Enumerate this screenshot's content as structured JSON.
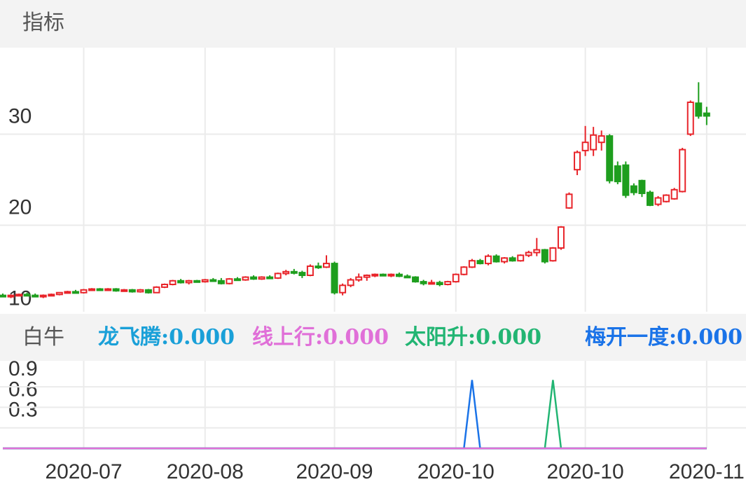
{
  "header": {
    "title": "指标"
  },
  "chart_data": [
    {
      "type": "candlestick",
      "up_color": "#e8242a",
      "down_color": "#1e9e1e",
      "grid": true,
      "ylim": [
        10.5,
        39.5
      ],
      "yticks": [
        10,
        20,
        30
      ],
      "ohlc": [
        [
          12.3,
          12.5,
          12.1,
          12.2
        ],
        [
          12.2,
          12.4,
          12.0,
          12.3
        ],
        [
          12.3,
          12.5,
          12.2,
          12.4
        ],
        [
          12.4,
          12.6,
          12.2,
          12.3
        ],
        [
          12.3,
          12.5,
          12.1,
          12.2
        ],
        [
          12.2,
          12.4,
          12.0,
          12.3
        ],
        [
          12.3,
          12.5,
          12.2,
          12.4
        ],
        [
          12.4,
          12.6,
          12.3,
          12.6
        ],
        [
          12.6,
          12.8,
          12.5,
          12.7
        ],
        [
          12.7,
          12.9,
          12.6,
          12.6
        ],
        [
          12.6,
          13.0,
          12.5,
          12.9
        ],
        [
          12.9,
          13.1,
          12.8,
          13.0
        ],
        [
          13.0,
          13.1,
          12.8,
          12.9
        ],
        [
          12.9,
          13.1,
          12.8,
          13.0
        ],
        [
          13.0,
          13.1,
          12.7,
          12.8
        ],
        [
          12.8,
          13.0,
          12.7,
          12.9
        ],
        [
          12.9,
          13.0,
          12.6,
          12.7
        ],
        [
          12.7,
          13.0,
          12.6,
          12.9
        ],
        [
          12.9,
          13.0,
          12.5,
          12.6
        ],
        [
          12.6,
          13.3,
          12.6,
          13.2
        ],
        [
          13.2,
          13.6,
          13.1,
          13.5
        ],
        [
          13.5,
          14.0,
          13.4,
          13.9
        ],
        [
          13.9,
          14.1,
          13.6,
          13.7
        ],
        [
          13.7,
          14.0,
          13.5,
          13.9
        ],
        [
          13.9,
          14.0,
          13.7,
          13.8
        ],
        [
          13.8,
          14.1,
          13.7,
          14.0
        ],
        [
          14.0,
          14.2,
          13.8,
          13.9
        ],
        [
          13.9,
          14.2,
          13.5,
          13.6
        ],
        [
          13.6,
          14.2,
          13.5,
          14.1
        ],
        [
          14.1,
          14.3,
          13.9,
          14.0
        ],
        [
          14.0,
          14.4,
          13.9,
          14.3
        ],
        [
          14.3,
          14.5,
          14.0,
          14.1
        ],
        [
          14.1,
          14.4,
          14.0,
          14.3
        ],
        [
          14.3,
          14.5,
          14.1,
          14.2
        ],
        [
          14.2,
          14.8,
          14.1,
          14.7
        ],
        [
          14.7,
          15.1,
          14.5,
          14.9
        ],
        [
          14.9,
          15.2,
          14.6,
          14.8
        ],
        [
          14.8,
          15.0,
          14.2,
          14.5
        ],
        [
          14.5,
          15.7,
          14.4,
          15.5
        ],
        [
          15.5,
          15.9,
          15.2,
          15.4
        ],
        [
          15.4,
          16.7,
          15.3,
          15.8
        ],
        [
          15.8,
          16.0,
          12.4,
          12.6
        ],
        [
          12.6,
          13.6,
          12.3,
          13.4
        ],
        [
          13.4,
          14.2,
          13.2,
          14.0
        ],
        [
          14.0,
          14.7,
          13.8,
          14.3
        ],
        [
          14.3,
          14.6,
          13.9,
          14.5
        ],
        [
          14.5,
          14.7,
          14.3,
          14.6
        ],
        [
          14.6,
          14.7,
          14.4,
          14.5
        ],
        [
          14.5,
          14.7,
          14.3,
          14.6
        ],
        [
          14.6,
          14.8,
          14.3,
          14.4
        ],
        [
          14.4,
          14.6,
          14.2,
          14.3
        ],
        [
          14.3,
          14.4,
          13.7,
          13.8
        ],
        [
          13.8,
          14.0,
          13.4,
          13.6
        ],
        [
          13.6,
          14.0,
          13.5,
          13.7
        ],
        [
          13.7,
          13.9,
          13.3,
          13.5
        ],
        [
          13.5,
          13.9,
          13.4,
          13.8
        ],
        [
          13.8,
          14.7,
          13.7,
          14.6
        ],
        [
          14.6,
          15.5,
          14.5,
          15.4
        ],
        [
          15.4,
          16.3,
          15.3,
          16.1
        ],
        [
          16.1,
          16.3,
          15.7,
          15.8
        ],
        [
          15.8,
          16.8,
          15.6,
          16.6
        ],
        [
          16.6,
          16.8,
          15.9,
          16.0
        ],
        [
          16.0,
          16.5,
          15.8,
          16.4
        ],
        [
          16.4,
          16.6,
          16.0,
          16.1
        ],
        [
          16.1,
          16.8,
          16.0,
          16.7
        ],
        [
          16.7,
          17.2,
          16.5,
          17.0
        ],
        [
          17.0,
          18.6,
          16.6,
          17.3
        ],
        [
          17.3,
          17.4,
          15.8,
          16.0
        ],
        [
          16.1,
          17.6,
          16.0,
          17.5
        ],
        [
          17.5,
          19.9,
          17.3,
          19.8
        ],
        [
          21.9,
          23.6,
          21.8,
          23.4
        ],
        [
          26.1,
          28.2,
          25.5,
          28.0
        ],
        [
          28.2,
          30.9,
          27.6,
          29.1
        ],
        [
          28.3,
          30.8,
          27.6,
          29.9
        ],
        [
          29.1,
          30.4,
          28.2,
          29.8
        ],
        [
          29.8,
          30.0,
          24.6,
          24.9
        ],
        [
          26.5,
          27.0,
          24.5,
          24.8
        ],
        [
          26.6,
          27.0,
          23.0,
          23.3
        ],
        [
          24.3,
          24.6,
          23.3,
          23.6
        ],
        [
          24.9,
          25.0,
          23.1,
          23.5
        ],
        [
          23.6,
          23.8,
          22.1,
          22.2
        ],
        [
          22.3,
          23.2,
          22.1,
          23.0
        ],
        [
          22.6,
          23.4,
          22.5,
          23.3
        ],
        [
          22.9,
          24.1,
          22.8,
          23.9
        ],
        [
          23.7,
          28.5,
          23.6,
          28.3
        ],
        [
          30.0,
          33.7,
          29.8,
          33.5
        ],
        [
          33.4,
          35.7,
          31.7,
          32.0
        ],
        [
          32.3,
          33.0,
          31.0,
          32.0
        ]
      ]
    },
    {
      "type": "line",
      "title": "白牛",
      "grid": true,
      "ylim": [
        0,
        1.28
      ],
      "yticks": [
        0.3,
        0.6,
        0.9
      ],
      "categories": [
        null,
        null,
        null,
        null,
        null,
        null,
        null,
        null,
        null,
        null,
        "2020-07",
        null,
        null,
        null,
        null,
        null,
        null,
        null,
        null,
        null,
        null,
        null,
        null,
        null,
        null,
        "2020-08",
        null,
        null,
        null,
        null,
        null,
        null,
        null,
        null,
        null,
        null,
        null,
        null,
        null,
        null,
        null,
        "2020-09",
        null,
        null,
        null,
        null,
        null,
        null,
        null,
        null,
        null,
        null,
        null,
        null,
        null,
        null,
        "2020-10",
        null,
        null,
        null,
        null,
        null,
        null,
        null,
        null,
        null,
        null,
        null,
        null,
        null,
        null,
        null,
        "2020-10",
        null,
        null,
        null,
        null,
        null,
        null,
        null,
        null,
        null,
        null,
        null,
        null,
        null,
        null,
        "2020-11"
      ],
      "series": [
        {
          "name": "龙飞腾:0.000",
          "color": "#1aa0d8",
          "values": [
            0,
            0,
            0,
            0,
            0,
            0,
            0,
            0,
            0,
            0,
            0,
            0,
            0,
            0,
            0,
            0,
            0,
            0,
            0,
            0,
            0,
            0,
            0,
            0,
            0,
            0,
            0,
            0,
            0,
            0,
            0,
            0,
            0,
            0,
            0,
            0,
            0,
            0,
            0,
            0,
            0,
            0,
            0,
            0,
            0,
            0,
            0,
            0,
            0,
            0,
            0,
            0,
            0,
            0,
            0,
            0,
            0,
            0,
            0,
            0,
            0,
            0,
            0,
            0,
            0,
            0,
            0,
            0,
            0,
            0,
            0,
            0,
            0,
            0,
            0,
            0,
            0,
            0,
            0,
            0,
            0,
            0,
            0,
            0,
            0,
            0,
            0,
            0
          ]
        },
        {
          "name": "梅开一度:0.000",
          "color": "#1a73e8",
          "values": [
            0,
            0,
            0,
            0,
            0,
            0,
            0,
            0,
            0,
            0,
            0,
            0,
            0,
            0,
            0,
            0,
            0,
            0,
            0,
            0,
            0,
            0,
            0,
            0,
            0,
            0,
            0,
            0,
            0,
            0,
            0,
            0,
            0,
            0,
            0,
            0,
            0,
            0,
            0,
            0,
            0,
            0,
            0,
            0,
            0,
            0,
            0,
            0,
            0,
            0,
            0,
            0,
            0,
            0,
            0,
            0,
            0,
            0,
            1,
            0,
            0,
            0,
            0,
            0,
            0,
            0,
            0,
            0,
            0,
            0,
            0,
            0,
            0,
            0,
            0,
            0,
            0,
            0,
            0,
            0,
            0,
            0,
            0,
            0,
            0,
            0,
            0,
            0
          ]
        },
        {
          "name": "太阳升:0.000",
          "color": "#22b573",
          "values": [
            0,
            0,
            0,
            0,
            0,
            0,
            0,
            0,
            0,
            0,
            0,
            0,
            0,
            0,
            0,
            0,
            0,
            0,
            0,
            0,
            0,
            0,
            0,
            0,
            0,
            0,
            0,
            0,
            0,
            0,
            0,
            0,
            0,
            0,
            0,
            0,
            0,
            0,
            0,
            0,
            0,
            0,
            0,
            0,
            0,
            0,
            0,
            0,
            0,
            0,
            0,
            0,
            0,
            0,
            0,
            0,
            0,
            0,
            0,
            0,
            0,
            0,
            0,
            0,
            0,
            0,
            0,
            0,
            1,
            0,
            0,
            0,
            0,
            0,
            0,
            0,
            0,
            0,
            0,
            0,
            0,
            0,
            0,
            0,
            0,
            0,
            0,
            0
          ]
        },
        {
          "name": "线上行:0.000",
          "color": "#e070d8",
          "values": [
            0,
            0,
            0,
            0,
            0,
            0,
            0,
            0,
            0,
            0,
            0,
            0,
            0,
            0,
            0,
            0,
            0,
            0,
            0,
            0,
            0,
            0,
            0,
            0,
            0,
            0,
            0,
            0,
            0,
            0,
            0,
            0,
            0,
            0,
            0,
            0,
            0,
            0,
            0,
            0,
            0,
            0,
            0,
            0,
            0,
            0,
            0,
            0,
            0,
            0,
            0,
            0,
            0,
            0,
            0,
            0,
            0,
            0,
            0,
            0,
            0,
            0,
            0,
            0,
            0,
            0,
            0,
            0,
            0,
            0,
            0,
            0,
            0,
            0,
            0,
            0,
            0,
            0,
            0,
            0,
            0,
            0,
            0,
            0,
            0,
            0,
            0,
            0
          ]
        }
      ]
    }
  ]
}
